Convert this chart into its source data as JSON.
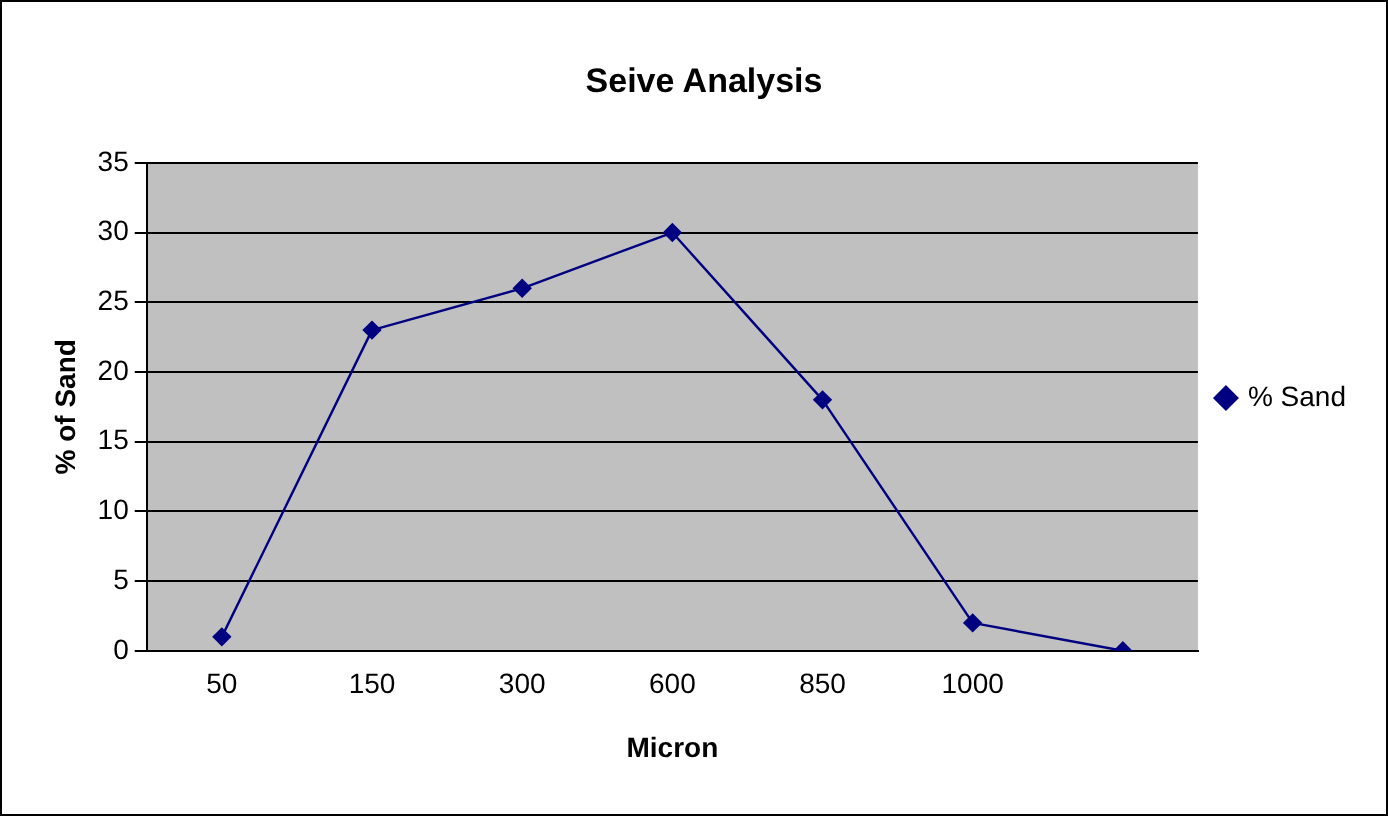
{
  "chart_data": {
    "type": "line",
    "title": "Seive Analysis",
    "xlabel": "Micron",
    "ylabel": "% of Sand",
    "categories": [
      "50",
      "150",
      "300",
      "600",
      "850",
      "1000",
      null
    ],
    "series": [
      {
        "name": "% Sand",
        "color": "#000080",
        "values": [
          1,
          23,
          26,
          30,
          18,
          2,
          0
        ]
      }
    ],
    "ylim": [
      0,
      35
    ],
    "yticks": [
      0,
      5,
      10,
      15,
      20,
      25,
      30,
      35
    ],
    "grid": "y",
    "legend": "right",
    "marker": "diamond",
    "line_style": "solid"
  }
}
